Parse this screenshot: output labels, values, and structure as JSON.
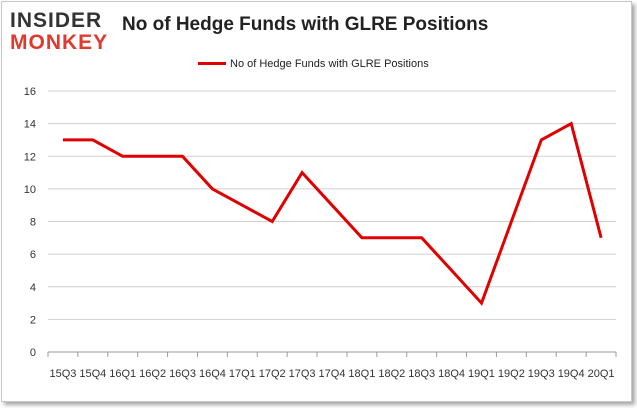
{
  "logo": {
    "line1": "INSIDER",
    "line2": "MONKEY"
  },
  "colors": {
    "series": "#e00000",
    "grid": "#d0d0d0",
    "logo_accent": "#e03a2e"
  },
  "chart_data": {
    "type": "line",
    "title": "No of Hedge Funds with GLRE Positions",
    "xlabel": "",
    "ylabel": "",
    "ylim": [
      0,
      16
    ],
    "yticks": [
      0,
      2,
      4,
      6,
      8,
      10,
      12,
      14,
      16
    ],
    "grid": "horizontal",
    "legend_position": "top-center",
    "categories": [
      "15Q3",
      "15Q4",
      "16Q1",
      "16Q2",
      "16Q3",
      "16Q4",
      "17Q1",
      "17Q2",
      "17Q3",
      "17Q4",
      "18Q1",
      "18Q2",
      "18Q3",
      "18Q4",
      "19Q1",
      "19Q2",
      "19Q3",
      "19Q4",
      "20Q1"
    ],
    "series": [
      {
        "name": "No of Hedge Funds with GLRE Positions",
        "values": [
          13,
          13,
          12,
          12,
          12,
          10,
          9,
          8,
          11,
          9,
          7,
          7,
          7,
          5,
          3,
          8,
          13,
          14,
          7
        ]
      }
    ]
  }
}
